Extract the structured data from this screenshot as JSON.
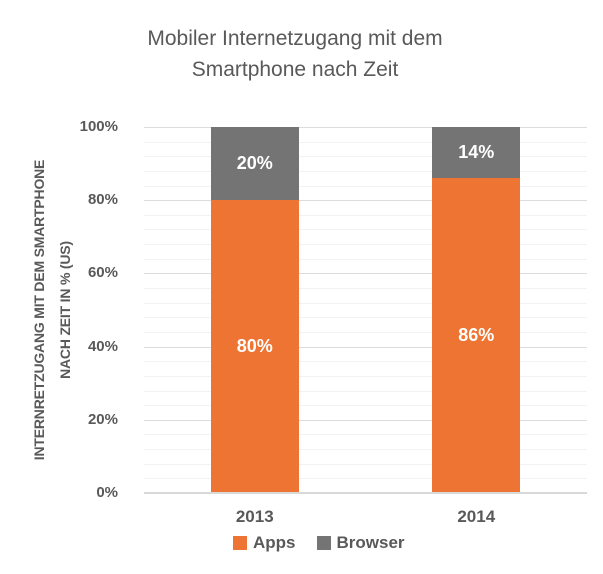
{
  "title": {
    "line1": "Mobiler Internetzugang mit dem",
    "line2": "Smartphone nach Zeit"
  },
  "y_axis_title": {
    "line1": "INTERNRETZUGANG MIT DEM SMARTPHONE",
    "line2": "NACH ZEIT IN % (US)"
  },
  "chart_data": {
    "type": "bar",
    "subtype": "stacked-100-percent",
    "title": "Mobiler Internetzugang mit dem Smartphone nach Zeit",
    "ylabel": "INTERNRETZUGANG MIT DEM SMARTPHONE NACH ZEIT IN % (US)",
    "xlabel": "",
    "categories": [
      "2013",
      "2014"
    ],
    "series": [
      {
        "name": "Apps",
        "color": "#ED7433",
        "values": [
          80,
          86
        ],
        "data_labels": [
          "80%",
          "86%"
        ]
      },
      {
        "name": "Browser",
        "color": "#747474",
        "values": [
          20,
          14
        ],
        "data_labels": [
          "20%",
          "14%"
        ]
      }
    ],
    "ylim": [
      0,
      100
    ],
    "ytick_labels": [
      "0%",
      "20%",
      "40%",
      "60%",
      "80%",
      "100%"
    ],
    "major_unit_pct": 20,
    "minor_unit_pct": 4,
    "grid": "horizontal major and minor gridlines",
    "legend_position": "bottom"
  },
  "colors": {
    "apps": "#ED7433",
    "browser": "#747474",
    "text": "#595959",
    "data_label_text": "#FFFFFF",
    "axis_line": "#D9D9D9",
    "major_grid": "#DCDCDC",
    "minor_grid": "#F2F2F2",
    "background": "#FFFFFF"
  }
}
